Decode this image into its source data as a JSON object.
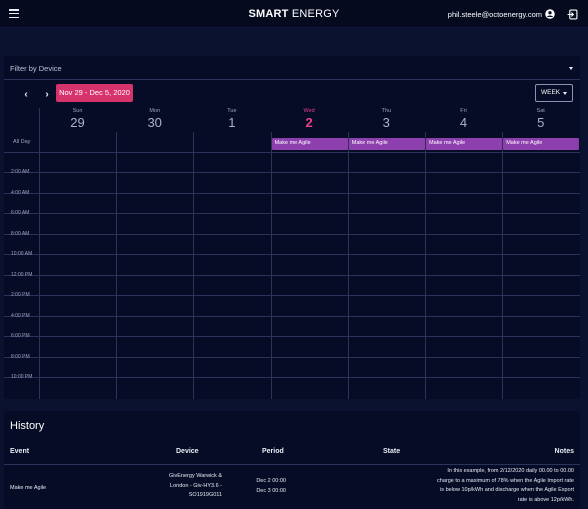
{
  "header": {
    "brand_bold": "SMART",
    "brand_rest": "ENERGY",
    "user_email": "phil.steele@octoenergy.com",
    "icons": [
      "menu-icon",
      "user-circle-icon",
      "logout-icon"
    ]
  },
  "filter": {
    "placeholder": "Filter by Device"
  },
  "calendar": {
    "range_label": "Nov 29 - Dec 5, 2020",
    "view": "WEEK",
    "prev_icon": "‹",
    "next_icon": "›",
    "days": [
      {
        "name": "Sun",
        "num": "29"
      },
      {
        "name": "Mon",
        "num": "30"
      },
      {
        "name": "Tue",
        "num": "1"
      },
      {
        "name": "Wed",
        "num": "2"
      },
      {
        "name": "Thu",
        "num": "3"
      },
      {
        "name": "Fri",
        "num": "4"
      },
      {
        "name": "Sat",
        "num": "5"
      }
    ],
    "today_index": 3,
    "allday_label": "All Day",
    "time_labels": [
      "2:00 AM",
      "4:00 AM",
      "6:00 AM",
      "8:00 AM",
      "10:00 AM",
      "12:00 PM",
      "2:00 PM",
      "4:00 PM",
      "6:00 PM",
      "8:00 PM",
      "10:00 PM"
    ],
    "events": [
      {
        "title": "Make me Agile"
      },
      {
        "title": "Make me Agile"
      },
      {
        "title": "Make me Agile"
      },
      {
        "title": "Make me Agile"
      }
    ],
    "event_color": "#8e3fae",
    "today_color": "#e8418a",
    "accent": "#d6336c"
  },
  "history": {
    "title": "History",
    "columns": {
      "event": "Event",
      "device": "Device",
      "period": "Period",
      "state": "State",
      "notes": "Notes"
    },
    "rows": [
      {
        "event": "Make me Agile",
        "device": [
          "GivEnergy Warwick &",
          "London - Giv-HY3.6 -",
          "SO1919G011"
        ],
        "period": [
          "Dec 2 00:00",
          "Dec 3 00:00"
        ],
        "state": "",
        "notes": [
          "In this example, from 2/12/2020 daily 00.00 to 00.00",
          "charge to a maximum of 78% when the Agile Import rate",
          "is below 10p/kWh and discharge when the Agile Export",
          "rate is above 12p/kWh."
        ]
      }
    ]
  }
}
